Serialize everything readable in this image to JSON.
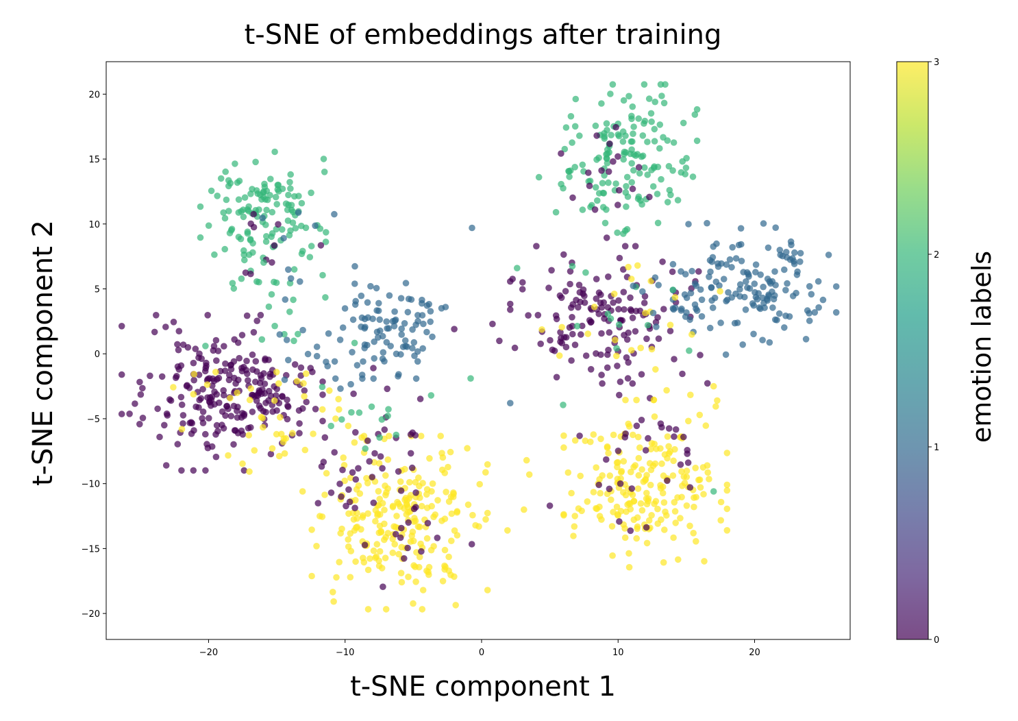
{
  "chart_data": {
    "type": "scatter",
    "title": "t-SNE of embeddings after training",
    "xlabel": "t-SNE component 1",
    "ylabel": "t-SNE component 2",
    "xlim": [
      -27.5,
      27.0
    ],
    "ylim": [
      -22.0,
      22.5
    ],
    "xticks": [
      -20,
      -10,
      0,
      10,
      20
    ],
    "yticks": [
      -20,
      -15,
      -10,
      -5,
      0,
      5,
      10,
      15,
      20
    ],
    "grid": false,
    "colormap": "viridis",
    "point_alpha": 0.7,
    "colorbar": {
      "label": "emotion labels",
      "range": [
        0,
        3
      ],
      "ticks": [
        0,
        1,
        2,
        3
      ],
      "colors": [
        "#440154",
        "#31688e",
        "#35b779",
        "#fde725"
      ]
    },
    "clusters": [
      {
        "label": 2,
        "n": 130,
        "center": [
          -16,
          10.5
        ],
        "spread": [
          2.0,
          2.2
        ]
      },
      {
        "label": 2,
        "n": 150,
        "center": [
          10.5,
          15
        ],
        "spread": [
          2.3,
          2.5
        ]
      },
      {
        "label": 0,
        "n": 240,
        "center": [
          -19,
          -3
        ],
        "spread": [
          3.2,
          2.6
        ]
      },
      {
        "label": 0,
        "n": 140,
        "center": [
          9,
          3
        ],
        "spread": [
          3.0,
          2.3
        ]
      },
      {
        "label": 1,
        "n": 90,
        "center": [
          -7,
          2
        ],
        "spread": [
          2.2,
          1.7
        ]
      },
      {
        "label": 1,
        "n": 140,
        "center": [
          20,
          5
        ],
        "spread": [
          2.6,
          2.2
        ]
      },
      {
        "label": 3,
        "n": 230,
        "center": [
          -6,
          -13
        ],
        "spread": [
          2.8,
          2.9
        ]
      },
      {
        "label": 3,
        "n": 200,
        "center": [
          12,
          -10
        ],
        "spread": [
          2.6,
          2.8
        ]
      },
      {
        "label": 0,
        "n": 40,
        "center": [
          -9,
          -8
        ],
        "spread": [
          3.2,
          3.0
        ]
      },
      {
        "label": 0,
        "n": 35,
        "center": [
          12,
          -7
        ],
        "spread": [
          2.5,
          3.0
        ]
      },
      {
        "label": 0,
        "n": 18,
        "center": [
          9,
          14
        ],
        "spread": [
          2.2,
          2.2
        ]
      },
      {
        "label": 0,
        "n": 16,
        "center": [
          -6,
          -14
        ],
        "spread": [
          2.6,
          2.6
        ]
      },
      {
        "label": 0,
        "n": 10,
        "center": [
          -16,
          9
        ],
        "spread": [
          2.0,
          2.0
        ]
      },
      {
        "label": 3,
        "n": 35,
        "center": [
          -14,
          -6
        ],
        "spread": [
          3.0,
          2.0
        ]
      },
      {
        "label": 3,
        "n": 25,
        "center": [
          11,
          1
        ],
        "spread": [
          3.0,
          3.0
        ]
      },
      {
        "label": 3,
        "n": 12,
        "center": [
          -17,
          -2
        ],
        "spread": [
          3.0,
          2.5
        ]
      },
      {
        "label": 2,
        "n": 15,
        "center": [
          -15,
          3
        ],
        "spread": [
          2.5,
          2.5
        ]
      },
      {
        "label": 2,
        "n": 12,
        "center": [
          -9,
          -5
        ],
        "spread": [
          2.5,
          2.0
        ]
      },
      {
        "label": 2,
        "n": 12,
        "center": [
          11,
          2
        ],
        "spread": [
          3.0,
          3.0
        ]
      },
      {
        "label": 1,
        "n": 20,
        "center": [
          14,
          4
        ],
        "spread": [
          2.0,
          1.5
        ]
      },
      {
        "label": 1,
        "n": 15,
        "center": [
          -11,
          0
        ],
        "spread": [
          2.0,
          1.5
        ]
      },
      {
        "label": 1,
        "n": 10,
        "center": [
          -13,
          7
        ],
        "spread": [
          2.0,
          2.0
        ]
      }
    ],
    "outliers": [
      {
        "label": 1,
        "x": -0.7,
        "y": 9.7
      },
      {
        "label": 1,
        "x": 2.1,
        "y": -3.8
      },
      {
        "label": 0,
        "x": 0.8,
        "y": 2.3
      },
      {
        "label": 0,
        "x": -2.0,
        "y": 1.9
      },
      {
        "label": 0,
        "x": 1.3,
        "y": 1.0
      },
      {
        "label": 2,
        "x": -0.8,
        "y": -1.9
      },
      {
        "label": 2,
        "x": -3.7,
        "y": -3.2
      },
      {
        "label": 0,
        "x": 3.0,
        "y": 5.5
      },
      {
        "label": 3,
        "x": 3.3,
        "y": -8.2
      },
      {
        "label": 3,
        "x": 3.5,
        "y": -9.3
      },
      {
        "label": 3,
        "x": 1.9,
        "y": -13.6
      },
      {
        "label": 3,
        "x": -0.2,
        "y": -13.3
      },
      {
        "label": 3,
        "x": 3.1,
        "y": -12.0
      },
      {
        "label": 0,
        "x": 5.0,
        "y": -11.7
      },
      {
        "label": 0,
        "x": 5.5,
        "y": -1.8
      },
      {
        "label": 2,
        "x": 4.2,
        "y": 13.6
      },
      {
        "label": 2,
        "x": 2.6,
        "y": 6.6
      },
      {
        "label": 3,
        "x": 17,
        "y": -2.5
      },
      {
        "label": 2,
        "x": 17,
        "y": -10.6
      }
    ]
  }
}
